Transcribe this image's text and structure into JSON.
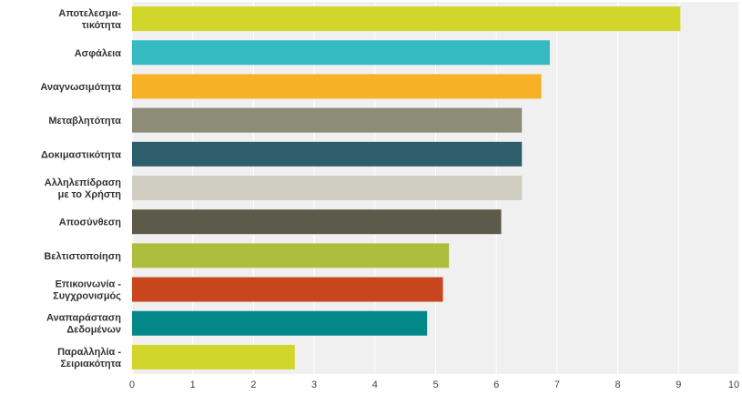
{
  "chart_data": {
    "type": "bar",
    "orientation": "horizontal",
    "categories": [
      [
        "Αποτελεσμα-",
        "τικότητα"
      ],
      [
        "Ασφάλεια"
      ],
      [
        "Αναγνωσιμότητα"
      ],
      [
        "Μεταβλητότητα"
      ],
      [
        "Δοκιμαστικότητα"
      ],
      [
        "Αλληλεπίδραση",
        "με το Χρήστη"
      ],
      [
        "Αποσύνθεση"
      ],
      [
        "Βελτιστοποίηση"
      ],
      [
        "Επικοινωνία -",
        "Συγχρονισμός"
      ],
      [
        "Αναπαράσταση",
        "Δεδομένων"
      ],
      [
        "Παραλληλία -",
        "Σειριακότητα"
      ]
    ],
    "values": [
      9.03,
      6.88,
      6.74,
      6.42,
      6.42,
      6.42,
      6.08,
      5.22,
      5.12,
      4.86,
      2.68
    ],
    "colors": [
      "#d2d62a",
      "#35bac2",
      "#f7b126",
      "#8c8c79",
      "#2e5e6b",
      "#d0cec0",
      "#5c5a48",
      "#adbe3e",
      "#c8461d",
      "#03888a",
      "#d2d62a"
    ],
    "xlim": [
      0,
      10
    ],
    "xticks": [
      "0",
      "1",
      "2",
      "3",
      "4",
      "5",
      "6",
      "7",
      "8",
      "9",
      "10"
    ],
    "grid": true,
    "plot_background": "#f0f0f0",
    "grid_color": "#ffffff"
  }
}
